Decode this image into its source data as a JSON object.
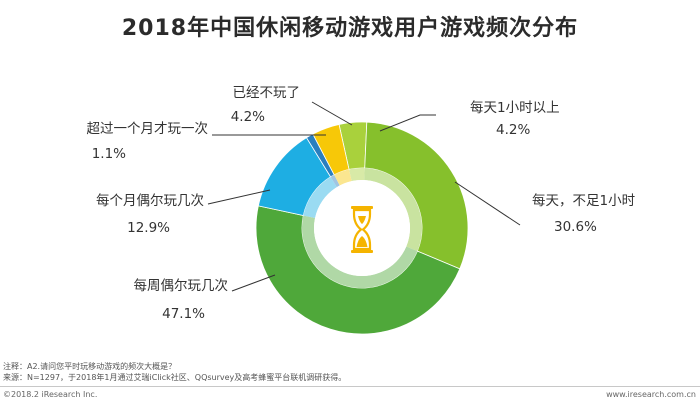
{
  "title": "2018年中国休闲移动游戏用户游戏频次分布",
  "chart_data": {
    "type": "pie",
    "donut": true,
    "categories": [
      "每天1小时以上",
      "每天，不足1小时",
      "每周偶尔玩几次",
      "每个月偶尔玩几次",
      "超过一个月才玩一次",
      "已经不玩了"
    ],
    "values": [
      4.2,
      30.6,
      47.1,
      12.9,
      1.1,
      4.2
    ],
    "value_labels": [
      "4.2%",
      "30.6%",
      "47.1%",
      "12.9%",
      "1.1%",
      "4.2%"
    ],
    "colors": [
      "#a9d13c",
      "#86c02c",
      "#4fa83a",
      "#1eaee3",
      "#2a7fbf",
      "#f7c808"
    ],
    "center_icon": "hourglass-icon"
  },
  "notes": [
    "注释：A2.请问您平时玩移动游戏的频次大概是？",
    "来源：N=1297，于2018年1月通过艾瑞iClick社区、QQsurvey及高考蜂蜜平台联机调研获得。"
  ],
  "footer": {
    "copyright": "©2018.2 iResearch Inc.",
    "website": "www.iresearch.com.cn"
  }
}
